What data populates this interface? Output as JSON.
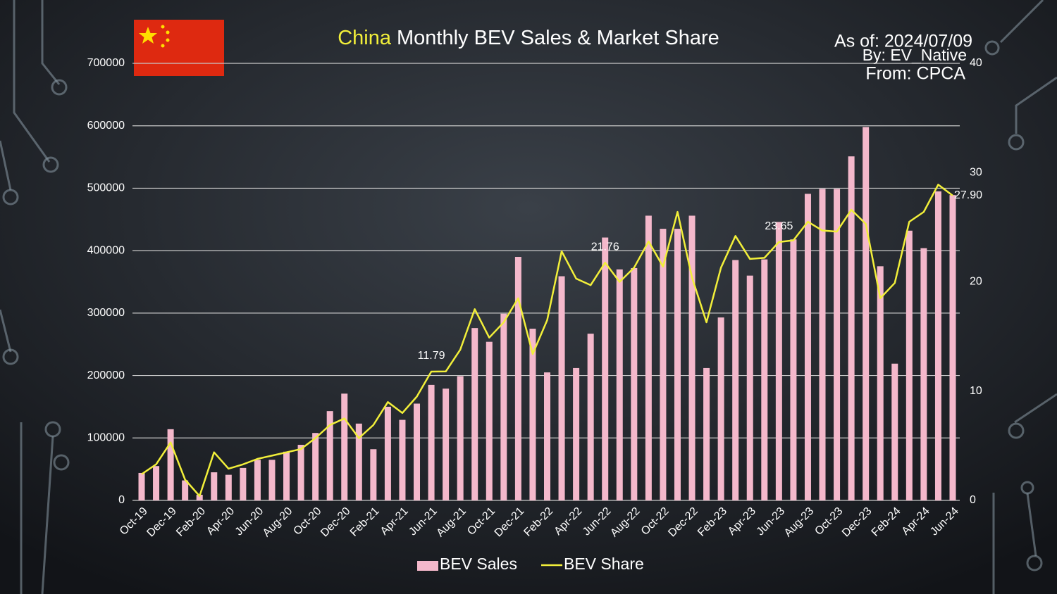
{
  "chart_data": {
    "type": "bar-line",
    "title_highlight": "China",
    "title": "Monthly BEV Sales & Market Share",
    "annotations": [
      "As of: 2024/07/09",
      "By: EV_Native",
      "From: CPCA"
    ],
    "categories": [
      "Oct-19",
      null,
      "Dec-19",
      null,
      "Feb-20",
      null,
      "Apr-20",
      null,
      "Jun-20",
      null,
      "Aug-20",
      null,
      "Oct-20",
      null,
      "Dec-20",
      null,
      "Feb-21",
      null,
      "Apr-21",
      null,
      "Jun-21",
      null,
      "Aug-21",
      null,
      "Oct-21",
      null,
      "Dec-21",
      null,
      "Feb-22",
      null,
      "Apr-22",
      null,
      "Jun-22",
      null,
      "Aug-22",
      null,
      "Oct-22",
      null,
      "Dec-22",
      null,
      "Feb-23",
      null,
      "Apr-23",
      null,
      "Jun-23",
      null,
      "Aug-23",
      null,
      "Oct-23",
      null,
      "Dec-23",
      null,
      "Feb-24",
      null,
      "Apr-24",
      null,
      "Jun-24"
    ],
    "series": [
      {
        "name": "BEV Sales",
        "type": "bar",
        "color": "#f4b8cb",
        "axis": "y",
        "values": [
          44000,
          55000,
          114000,
          32000,
          9000,
          45000,
          41000,
          52000,
          65000,
          65000,
          78000,
          89000,
          108000,
          143000,
          171000,
          123000,
          82000,
          150000,
          129000,
          155000,
          185000,
          179000,
          199000,
          276000,
          254000,
          299000,
          390000,
          275000,
          205000,
          359000,
          212000,
          267000,
          421000,
          370000,
          372000,
          456000,
          435000,
          435000,
          456000,
          212000,
          293000,
          385000,
          360000,
          386000,
          446000,
          418000,
          491000,
          499000,
          499000,
          551000,
          598000,
          375000,
          219000,
          432000,
          404000,
          495000,
          489000
        ]
      },
      {
        "name": "BEV Share",
        "type": "line",
        "color": "#f2ef3a",
        "axis": "y2",
        "values": [
          2.4,
          3.3,
          5.3,
          1.9,
          0.4,
          4.4,
          2.9,
          3.3,
          3.8,
          4.1,
          4.4,
          4.7,
          5.7,
          6.9,
          7.5,
          5.7,
          6.9,
          9.0,
          8.0,
          9.5,
          11.79,
          11.8,
          13.8,
          17.5,
          14.9,
          16.3,
          18.5,
          13.4,
          16.5,
          22.8,
          20.3,
          19.7,
          21.76,
          20.0,
          21.3,
          23.7,
          21.4,
          26.4,
          20.4,
          16.3,
          21.3,
          24.2,
          22.1,
          22.2,
          23.65,
          23.8,
          25.5,
          24.7,
          24.6,
          26.6,
          25.3,
          18.5,
          19.9,
          25.5,
          26.4,
          28.9,
          27.9
        ],
        "value_labels": [
          null,
          null,
          null,
          null,
          null,
          null,
          null,
          null,
          null,
          null,
          null,
          null,
          null,
          null,
          null,
          null,
          null,
          null,
          null,
          null,
          "11.79",
          null,
          null,
          null,
          null,
          null,
          null,
          null,
          null,
          null,
          null,
          null,
          "21.76",
          null,
          null,
          null,
          null,
          null,
          null,
          null,
          null,
          null,
          null,
          null,
          "23.65",
          null,
          null,
          null,
          null,
          null,
          null,
          null,
          null,
          null,
          null,
          null,
          "27.90"
        ]
      }
    ],
    "ylim": [
      0,
      700000
    ],
    "yticks": [
      0,
      100000,
      200000,
      300000,
      400000,
      500000,
      600000,
      700000
    ],
    "y2lim": [
      0,
      40
    ],
    "y2ticks": [
      0,
      10,
      20,
      30,
      40
    ],
    "grid": true,
    "legend": "bottom"
  }
}
